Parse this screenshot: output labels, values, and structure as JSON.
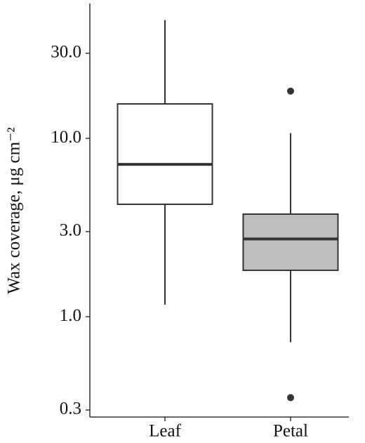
{
  "chart_data": {
    "type": "box",
    "y_label": "Wax coverage, μg cm⁻²",
    "log_y": true,
    "categories": [
      "Leaf",
      "Petal"
    ],
    "boxes": [
      {
        "whisker_low": 1.17,
        "q1": 4.27,
        "median": 7.15,
        "q3": 15.6,
        "whisker_high": 46,
        "outliers": [],
        "color": "#ffffff"
      },
      {
        "whisker_low": 0.72,
        "q1": 1.82,
        "median": 2.73,
        "q3": 3.76,
        "whisker_high": 10.7,
        "outliers": [
          18.4,
          0.352
        ],
        "color": "#bebebe"
      }
    ],
    "ylim": [
      0.274,
      57
    ],
    "yticks": [
      0.3,
      {
        "value": 1,
        "label": "1.0"
      },
      {
        "value": 3,
        "label": "3.0"
      },
      {
        "value": 10,
        "label": "10.0"
      },
      {
        "value": 30,
        "label": "30.0"
      }
    ]
  }
}
